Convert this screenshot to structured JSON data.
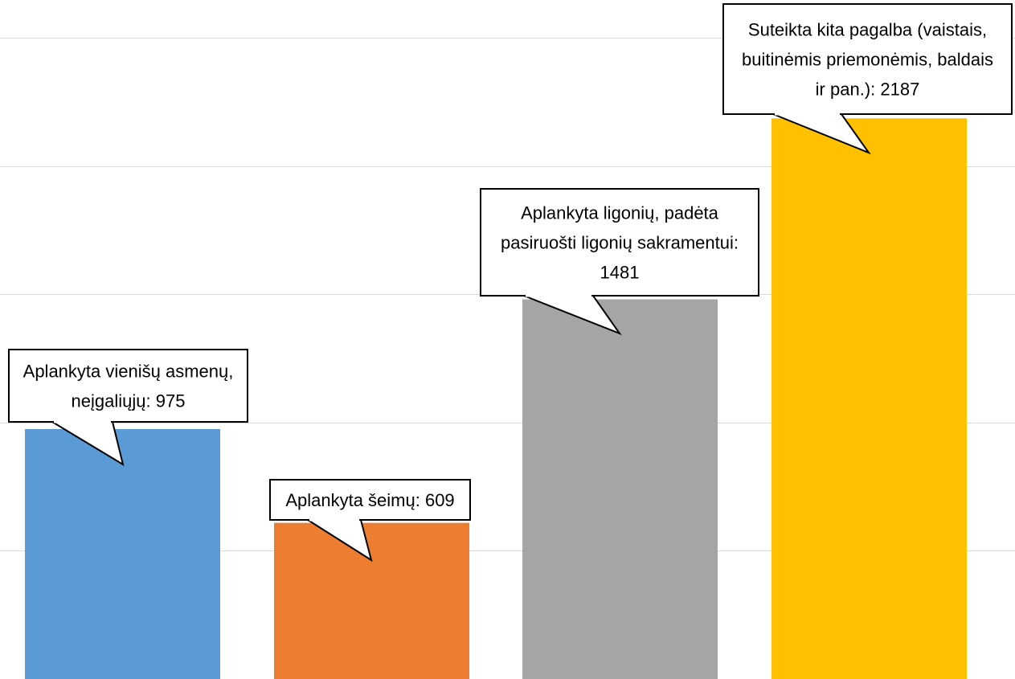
{
  "chart_data": {
    "type": "bar",
    "grid": true,
    "ylim": [
      0,
      2500
    ],
    "legend": "none",
    "series": [
      {
        "values": [
          975,
          609,
          1481,
          2187
        ],
        "colors": [
          "#5b9bd5",
          "#ed7d31",
          "#a5a5a5",
          "#ffc000"
        ]
      }
    ],
    "data_labels": [
      [
        "Aplankyta vienišų asmenų,",
        "neįgaliųjų: 975"
      ],
      [
        "Aplankyta šeimų: 609"
      ],
      [
        "Aplankyta ligonių, padėta",
        "pasiruošti ligonių sakramentui:",
        "1481"
      ],
      [
        "Suteikta kita pagalba (vaistais,",
        "buitinėmis priemonėmis, baldais",
        "ir pan.):  2187"
      ]
    ]
  }
}
